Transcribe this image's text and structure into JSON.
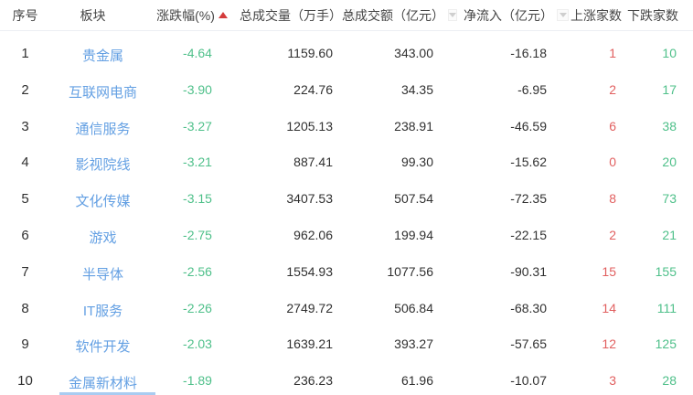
{
  "table": {
    "header": {
      "col_no": "序号",
      "col_sector": "板块",
      "col_change": "涨跌幅(%)",
      "col_volume": "总成交量（万手）",
      "col_turnover": "总成交额（亿元）",
      "col_net_inflow": "净流入（亿元）",
      "col_up": "上涨家数",
      "col_down": "下跌家数",
      "sort_state_change": "ascending-active",
      "sort_state_volume": "inactive",
      "sort_state_turnover": "inactive",
      "sort_state_net_inflow": "inactive"
    },
    "rows": [
      {
        "no": "1",
        "sector": "贵金属",
        "change": "-4.64",
        "volume": "1159.60",
        "turnover": "343.00",
        "net_inflow": "-16.18",
        "up_count": "1",
        "down_count": "10"
      },
      {
        "no": "2",
        "sector": "互联网电商",
        "change": "-3.90",
        "volume": "224.76",
        "turnover": "34.35",
        "net_inflow": "-6.95",
        "up_count": "2",
        "down_count": "17"
      },
      {
        "no": "3",
        "sector": "通信服务",
        "change": "-3.27",
        "volume": "1205.13",
        "turnover": "238.91",
        "net_inflow": "-46.59",
        "up_count": "6",
        "down_count": "38"
      },
      {
        "no": "4",
        "sector": "影视院线",
        "change": "-3.21",
        "volume": "887.41",
        "turnover": "99.30",
        "net_inflow": "-15.62",
        "up_count": "0",
        "down_count": "20"
      },
      {
        "no": "5",
        "sector": "文化传媒",
        "change": "-3.15",
        "volume": "3407.53",
        "turnover": "507.54",
        "net_inflow": "-72.35",
        "up_count": "8",
        "down_count": "73"
      },
      {
        "no": "6",
        "sector": "游戏",
        "change": "-2.75",
        "volume": "962.06",
        "turnover": "199.94",
        "net_inflow": "-22.15",
        "up_count": "2",
        "down_count": "21"
      },
      {
        "no": "7",
        "sector": "半导体",
        "change": "-2.56",
        "volume": "1554.93",
        "turnover": "1077.56",
        "net_inflow": "-90.31",
        "up_count": "15",
        "down_count": "155"
      },
      {
        "no": "8",
        "sector": "IT服务",
        "change": "-2.26",
        "volume": "2749.72",
        "turnover": "506.84",
        "net_inflow": "-68.30",
        "up_count": "14",
        "down_count": "111"
      },
      {
        "no": "9",
        "sector": "软件开发",
        "change": "-2.03",
        "volume": "1639.21",
        "turnover": "393.27",
        "net_inflow": "-57.65",
        "up_count": "12",
        "down_count": "125"
      },
      {
        "no": "10",
        "sector": "金属新材料",
        "change": "-1.89",
        "volume": "236.23",
        "turnover": "61.96",
        "net_inflow": "-10.07",
        "up_count": "3",
        "down_count": "28"
      }
    ]
  },
  "colors": {
    "sector_link_blue": "#64a0e3",
    "decline_green": "#4fc08a",
    "advance_red": "#e15f5f",
    "active_sort_red": "#d43c3c",
    "inactive_sort_gray": "#cfcfcf",
    "header_text": "#464646",
    "value_text": "#303030",
    "header_divider": "#eceff3",
    "bottom_bar_blue": "#a9ccf1"
  }
}
